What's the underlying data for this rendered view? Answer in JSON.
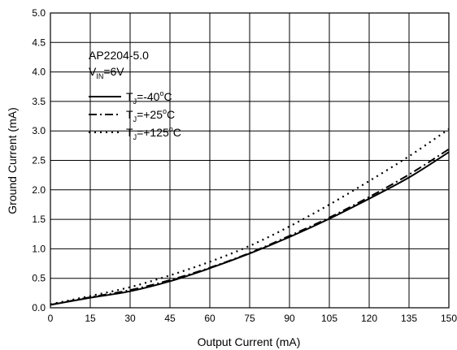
{
  "chart_data": {
    "type": "line",
    "title": "",
    "xlabel": "Output Current (mA)",
    "ylabel": "Ground Current (mA)",
    "xlim": [
      0,
      150
    ],
    "ylim": [
      0,
      5.0
    ],
    "xticks": [
      "0",
      "15",
      "30",
      "45",
      "60",
      "75",
      "90",
      "105",
      "120",
      "135",
      "150"
    ],
    "yticks": [
      "0.0",
      "0.5",
      "1.0",
      "1.5",
      "2.0",
      "2.5",
      "3.0",
      "3.5",
      "4.0",
      "4.5",
      "5.0"
    ],
    "grid": true,
    "legend_position": "top-left",
    "annotations": {
      "device": "AP2204-5.0",
      "vin": {
        "main": "V",
        "sub": "IN",
        "value": "=6V"
      }
    },
    "x": [
      0,
      15,
      30,
      45,
      60,
      75,
      90,
      105,
      120,
      135,
      150
    ],
    "series": [
      {
        "name": "T_J=-40°C",
        "legend": {
          "main": "T",
          "sub": "J",
          "value": "=-40",
          "sup": "o",
          "unit": "C"
        },
        "style": "solid",
        "values": [
          0.05,
          0.17,
          0.28,
          0.45,
          0.67,
          0.92,
          1.2,
          1.51,
          1.85,
          2.21,
          2.64
        ]
      },
      {
        "name": "T_J=+25°C",
        "legend": {
          "main": "T",
          "sub": "J",
          "value": "=+25",
          "sup": "o",
          "unit": "C"
        },
        "style": "dashdot",
        "values": [
          0.05,
          0.18,
          0.3,
          0.47,
          0.68,
          0.93,
          1.22,
          1.53,
          1.88,
          2.26,
          2.69
        ]
      },
      {
        "name": "T_J=+125°C",
        "legend": {
          "main": "T",
          "sub": "J",
          "value": "=+125",
          "sup": "o",
          "unit": "C"
        },
        "style": "dotted",
        "values": [
          0.06,
          0.2,
          0.35,
          0.55,
          0.78,
          1.05,
          1.38,
          1.75,
          2.15,
          2.57,
          3.03
        ]
      }
    ]
  }
}
